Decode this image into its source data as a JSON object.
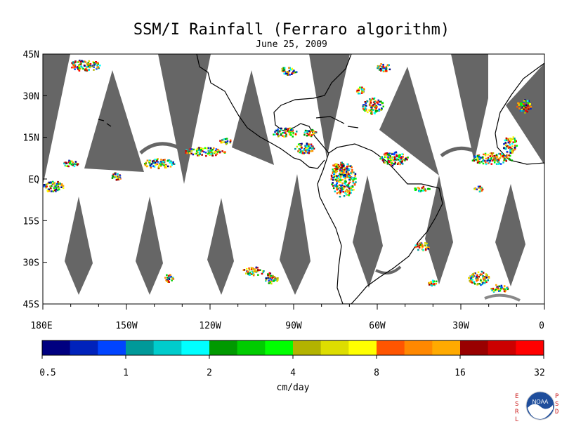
{
  "title": "SSM/I Rainfall (Ferraro algorithm)",
  "subtitle": "June 25, 2009",
  "map": {
    "lat_labels": [
      "45N",
      "30N",
      "15N",
      "EQ",
      "15S",
      "30S",
      "45S"
    ],
    "lon_labels": [
      "180E",
      "150W",
      "120W",
      "90W",
      "60W",
      "30W",
      "0"
    ],
    "lat_range": [
      -45,
      45
    ],
    "lon_range": [
      -180,
      0
    ],
    "no_data_color": "#666666",
    "land_outline_color": "#000000"
  },
  "colorbar": {
    "unit_label": "cm/day",
    "tick_labels": [
      "0.5",
      "1",
      "2",
      "4",
      "8",
      "16",
      "32"
    ],
    "colors": [
      "#000080",
      "#0022bb",
      "#0044ff",
      "#009999",
      "#00cccc",
      "#00ffff",
      "#009900",
      "#00cc00",
      "#00ff00",
      "#b3b300",
      "#dddd00",
      "#ffff00",
      "#ff5500",
      "#ff8800",
      "#ffaa00",
      "#990000",
      "#cc0000",
      "#ff0000"
    ]
  },
  "logo": {
    "left_text": "ESRL",
    "right_text": "PSD",
    "badge_text": "NOAA"
  }
}
